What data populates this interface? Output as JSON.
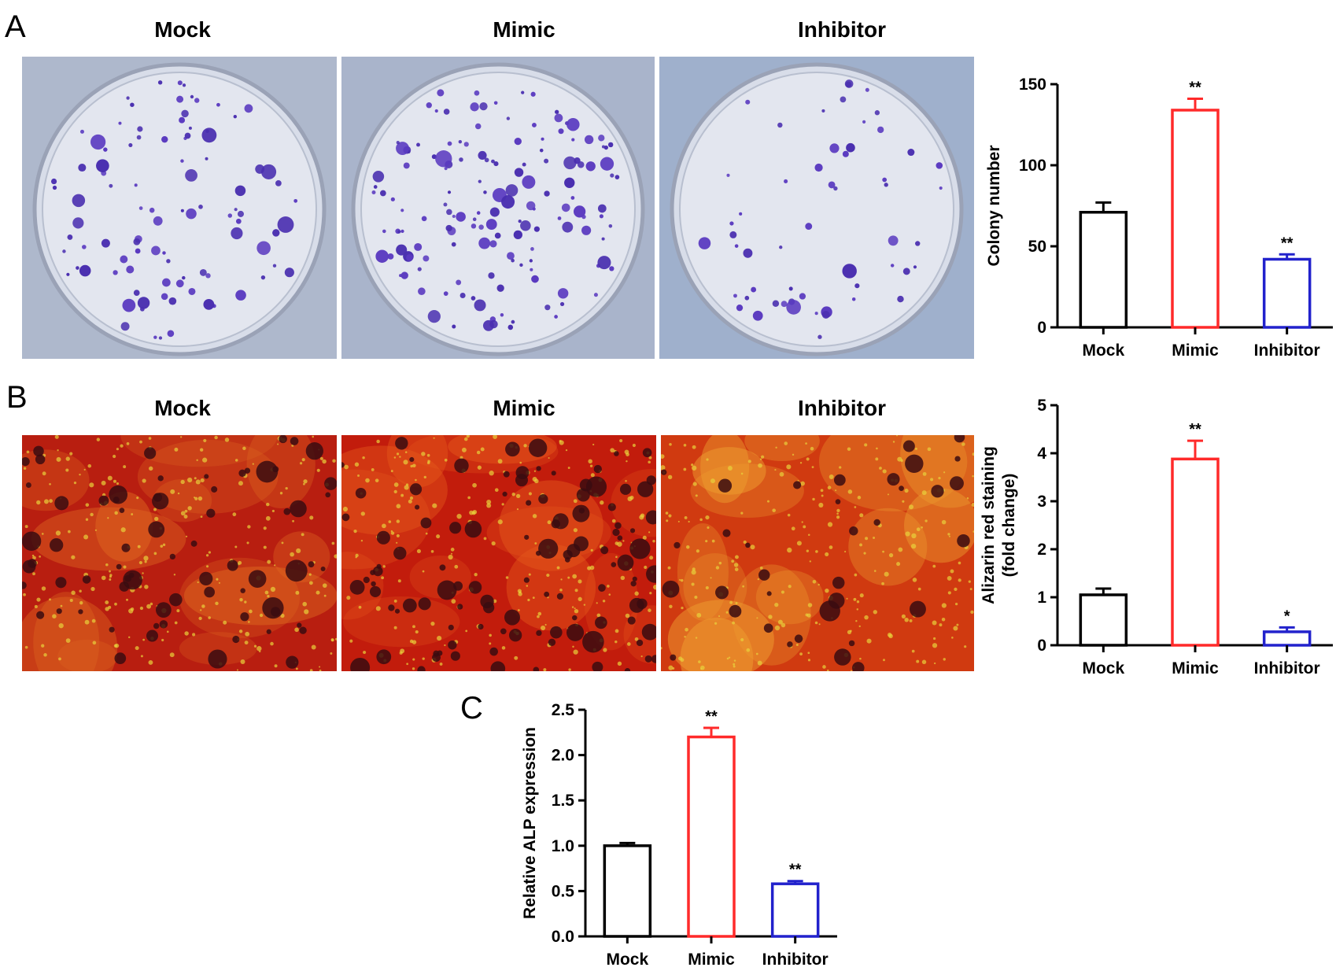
{
  "figure": {
    "panels": [
      {
        "letter": "A",
        "image_titles": [
          "Mock",
          "Mimic",
          "Inhibitor"
        ]
      },
      {
        "letter": "B",
        "image_titles": [
          "Mock",
          "Mimic",
          "Inhibitor"
        ]
      },
      {
        "letter": "C"
      }
    ]
  },
  "chart_data": [
    {
      "type": "bar",
      "panel": "A",
      "categories": [
        "Mock",
        "Mimic",
        "Inhibitor"
      ],
      "values": [
        71,
        134,
        42
      ],
      "errors": [
        6,
        7,
        3
      ],
      "significance": [
        "",
        "**",
        "**"
      ],
      "colors": [
        "#000000",
        "#ff2a2a",
        "#2222cc"
      ],
      "title": "",
      "xlabel": "",
      "ylabel": "Colony number",
      "ylim": [
        0,
        150
      ],
      "yticks": [
        0,
        50,
        100,
        150
      ],
      "grid": false
    },
    {
      "type": "bar",
      "panel": "B",
      "categories": [
        "Mock",
        "Mimic",
        "Inhibitor"
      ],
      "values": [
        1.05,
        3.88,
        0.28
      ],
      "errors": [
        0.13,
        0.38,
        0.09
      ],
      "significance": [
        "",
        "**",
        "*"
      ],
      "colors": [
        "#000000",
        "#ff2a2a",
        "#2222cc"
      ],
      "title": "",
      "xlabel": "",
      "ylabel_lines": [
        "Alizarin red staining",
        "(fold change)"
      ],
      "ylim": [
        0,
        5
      ],
      "yticks": [
        0,
        1,
        2,
        3,
        4,
        5
      ],
      "grid": false
    },
    {
      "type": "bar",
      "panel": "C",
      "categories": [
        "Mock",
        "Mimic",
        "Inhibitor"
      ],
      "values": [
        1.0,
        2.2,
        0.58
      ],
      "errors": [
        0.03,
        0.1,
        0.03
      ],
      "significance": [
        "",
        "**",
        "**"
      ],
      "colors": [
        "#000000",
        "#ff2a2a",
        "#2222cc"
      ],
      "title": "",
      "xlabel": "",
      "ylabel": "Relative ALP expression",
      "ylim": [
        0,
        2.5
      ],
      "yticks": [
        "0.0",
        "0.5",
        "1.0",
        "1.5",
        "2.0",
        "2.5"
      ],
      "grid": false
    }
  ]
}
